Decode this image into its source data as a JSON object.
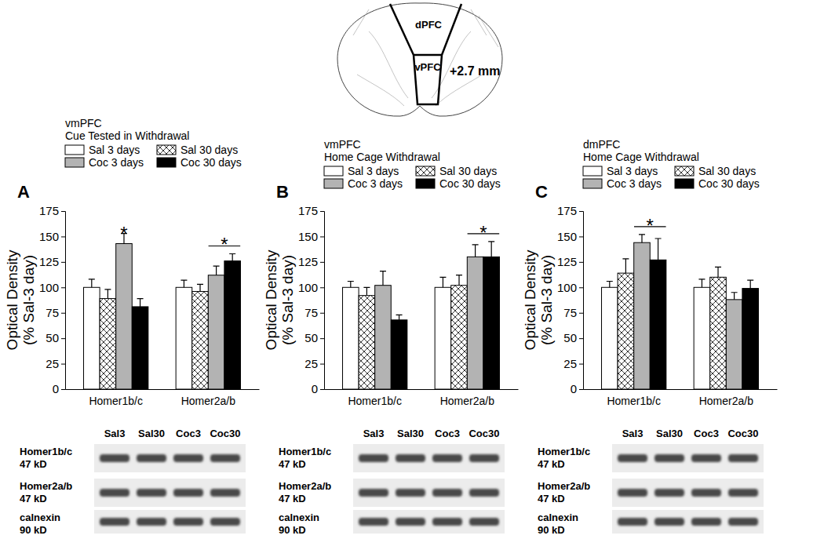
{
  "chart_data": [
    {
      "type": "bar",
      "panel": "A",
      "title": "vmPFC",
      "subtitle": "Cue Tested in Withdrawal",
      "ylabel": [
        "Optical Density",
        "(% Sal-3 day)"
      ],
      "categories": [
        "Homer1b/c",
        "Homer2a/b"
      ],
      "series": [
        {
          "name": "Sal 3 days",
          "color": "#ffffff",
          "values": [
            100,
            100
          ],
          "errors": [
            8,
            7
          ]
        },
        {
          "name": "Sal 30 days",
          "color": "#ffffff",
          "marker": "crosshatch",
          "values": [
            89,
            96
          ],
          "errors": [
            9,
            7
          ]
        },
        {
          "name": "Coc 3 days",
          "color": "#b3b3b3",
          "values": [
            143,
            112
          ],
          "errors": [
            10,
            9
          ]
        },
        {
          "name": "Coc 30 days",
          "color": "#000000",
          "values": [
            81,
            126
          ],
          "errors": [
            8,
            7
          ]
        }
      ],
      "ylim": [
        0,
        175
      ],
      "yticks": [
        0,
        25,
        50,
        75,
        100,
        125,
        150,
        175
      ],
      "grid": false,
      "legend": "top",
      "annotations": [
        {
          "text": "*",
          "category": 0,
          "series": [
            2
          ]
        },
        {
          "text": "*",
          "category": 1,
          "series": [
            2,
            3
          ]
        }
      ]
    },
    {
      "type": "bar",
      "panel": "B",
      "title": "vmPFC",
      "subtitle": "Home Cage Withdrawal",
      "ylabel": [
        "Optical Density",
        "(% Sal-3 day)"
      ],
      "categories": [
        "Homer1b/c",
        "Homer2a/b"
      ],
      "series": [
        {
          "name": "Sal 3 days",
          "color": "#ffffff",
          "values": [
            100,
            100
          ],
          "errors": [
            6,
            10
          ]
        },
        {
          "name": "Sal 30 days",
          "color": "#ffffff",
          "marker": "crosshatch",
          "values": [
            92,
            102
          ],
          "errors": [
            8,
            10
          ]
        },
        {
          "name": "Coc 3 days",
          "color": "#b3b3b3",
          "values": [
            102,
            130
          ],
          "errors": [
            14,
            12
          ]
        },
        {
          "name": "Coc 30 days",
          "color": "#000000",
          "values": [
            68,
            130
          ],
          "errors": [
            5,
            15
          ]
        }
      ],
      "ylim": [
        0,
        175
      ],
      "yticks": [
        0,
        25,
        50,
        75,
        100,
        125,
        150,
        175
      ],
      "grid": false,
      "legend": "top",
      "annotations": [
        {
          "text": "*",
          "category": 1,
          "series": [
            2,
            3
          ]
        }
      ]
    },
    {
      "type": "bar",
      "panel": "C",
      "title": "dmPFC",
      "subtitle": "Home Cage Withdrawal",
      "ylabel": [
        "Optical Density",
        "(% Sal-3 day)"
      ],
      "categories": [
        "Homer1b/c",
        "Homer2a/b"
      ],
      "series": [
        {
          "name": "Sal 3 days",
          "color": "#ffffff",
          "values": [
            100,
            100
          ],
          "errors": [
            6,
            8
          ]
        },
        {
          "name": "Sal 30 days",
          "color": "#ffffff",
          "marker": "crosshatch",
          "values": [
            114,
            110
          ],
          "errors": [
            14,
            10
          ]
        },
        {
          "name": "Coc 3 days",
          "color": "#b3b3b3",
          "values": [
            144,
            88
          ],
          "errors": [
            8,
            7
          ]
        },
        {
          "name": "Coc 30 days",
          "color": "#000000",
          "values": [
            127,
            99
          ],
          "errors": [
            21,
            8
          ]
        }
      ],
      "ylim": [
        0,
        175
      ],
      "yticks": [
        0,
        25,
        50,
        75,
        100,
        125,
        150,
        175
      ],
      "grid": false,
      "legend": "top",
      "annotations": [
        {
          "text": "*",
          "category": 0,
          "series": [
            2,
            3
          ]
        }
      ]
    }
  ],
  "diagram": {
    "dorsal": "dPFC",
    "ventral": "vPFC",
    "coordinate": "+2.7 mm"
  },
  "blots": [
    {
      "lanes": [
        "Sal3",
        "Sal30",
        "Coc3",
        "Coc30"
      ],
      "rows": [
        {
          "label": "Homer1b/c",
          "size": "47 kD"
        },
        {
          "label": "Homer2a/b",
          "size": "47 kD"
        },
        {
          "label": "calnexin",
          "size": "90 kD"
        }
      ]
    },
    {
      "lanes": [
        "Sal3",
        "Sal30",
        "Coc3",
        "Coc30"
      ],
      "rows": [
        {
          "label": "Homer1b/c",
          "size": "47 kD"
        },
        {
          "label": "Homer2a/b",
          "size": "47 kD"
        },
        {
          "label": "calnexin",
          "size": "90 kD"
        }
      ]
    },
    {
      "lanes": [
        "Sal3",
        "Sal30",
        "Coc3",
        "Coc30"
      ],
      "rows": [
        {
          "label": "Homer1b/c",
          "size": "47 kD"
        },
        {
          "label": "Homer2a/b",
          "size": "47 kD"
        },
        {
          "label": "calnexin",
          "size": "90 kD"
        }
      ]
    }
  ]
}
